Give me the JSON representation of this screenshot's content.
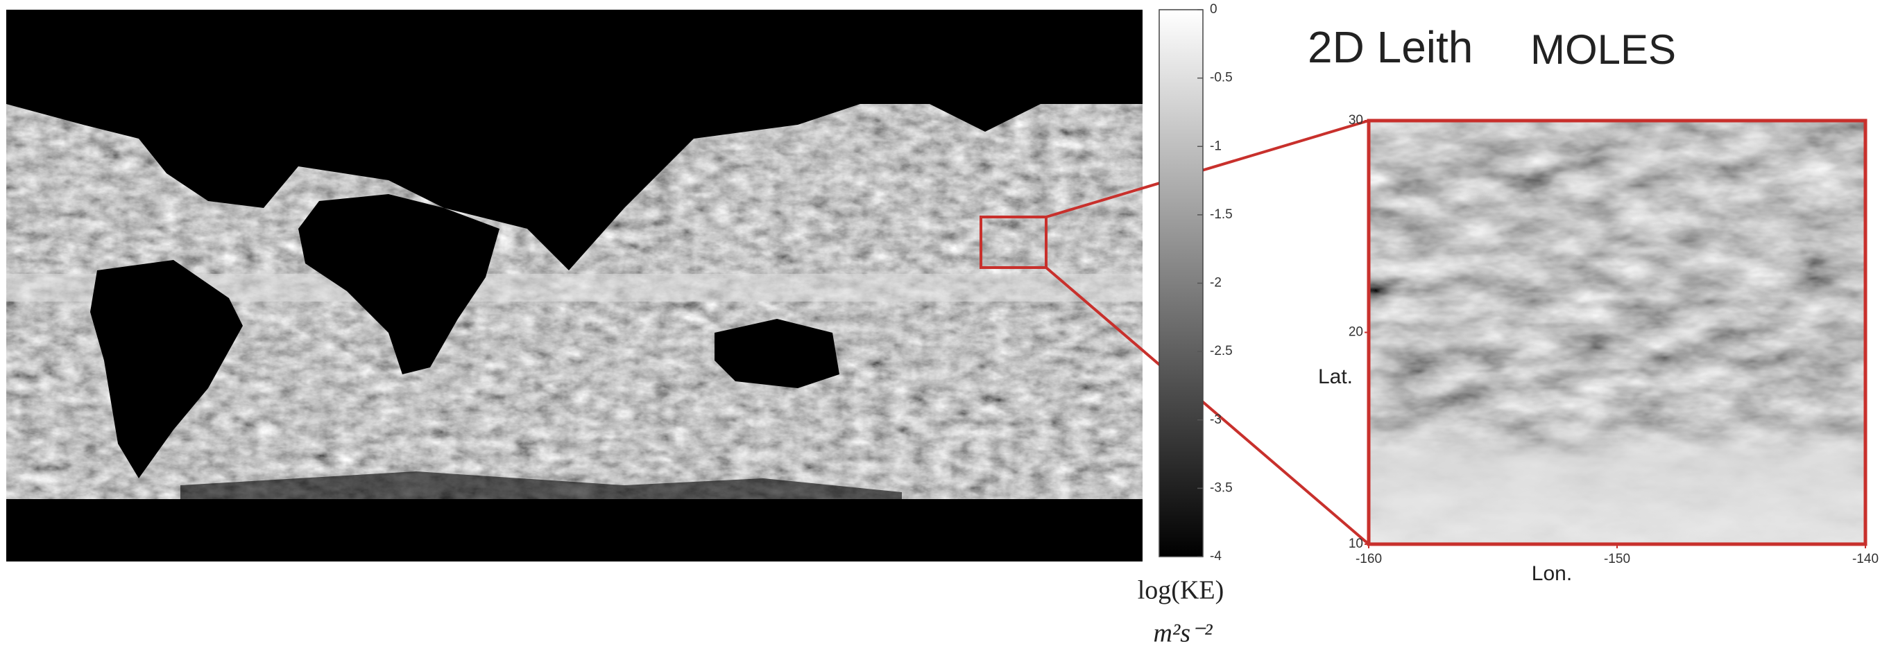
{
  "map": {
    "colorbar": {
      "lim": [
        -4,
        0
      ],
      "ticks": [
        0,
        -0.5,
        -1,
        -1.5,
        -2,
        -2.5,
        -3,
        -3.5,
        -4
      ],
      "label": "log(KE)",
      "units": "m²s⁻²"
    }
  },
  "inset": {
    "title": "2D Leith",
    "model": "MOLES",
    "y_label": "Lat.",
    "x_label": "Lon.",
    "ylim": [
      10,
      30
    ],
    "yticks": [
      30,
      20,
      10
    ],
    "xlim": [
      -160,
      -140
    ],
    "xticks": [
      -160,
      -150,
      -140
    ]
  }
}
